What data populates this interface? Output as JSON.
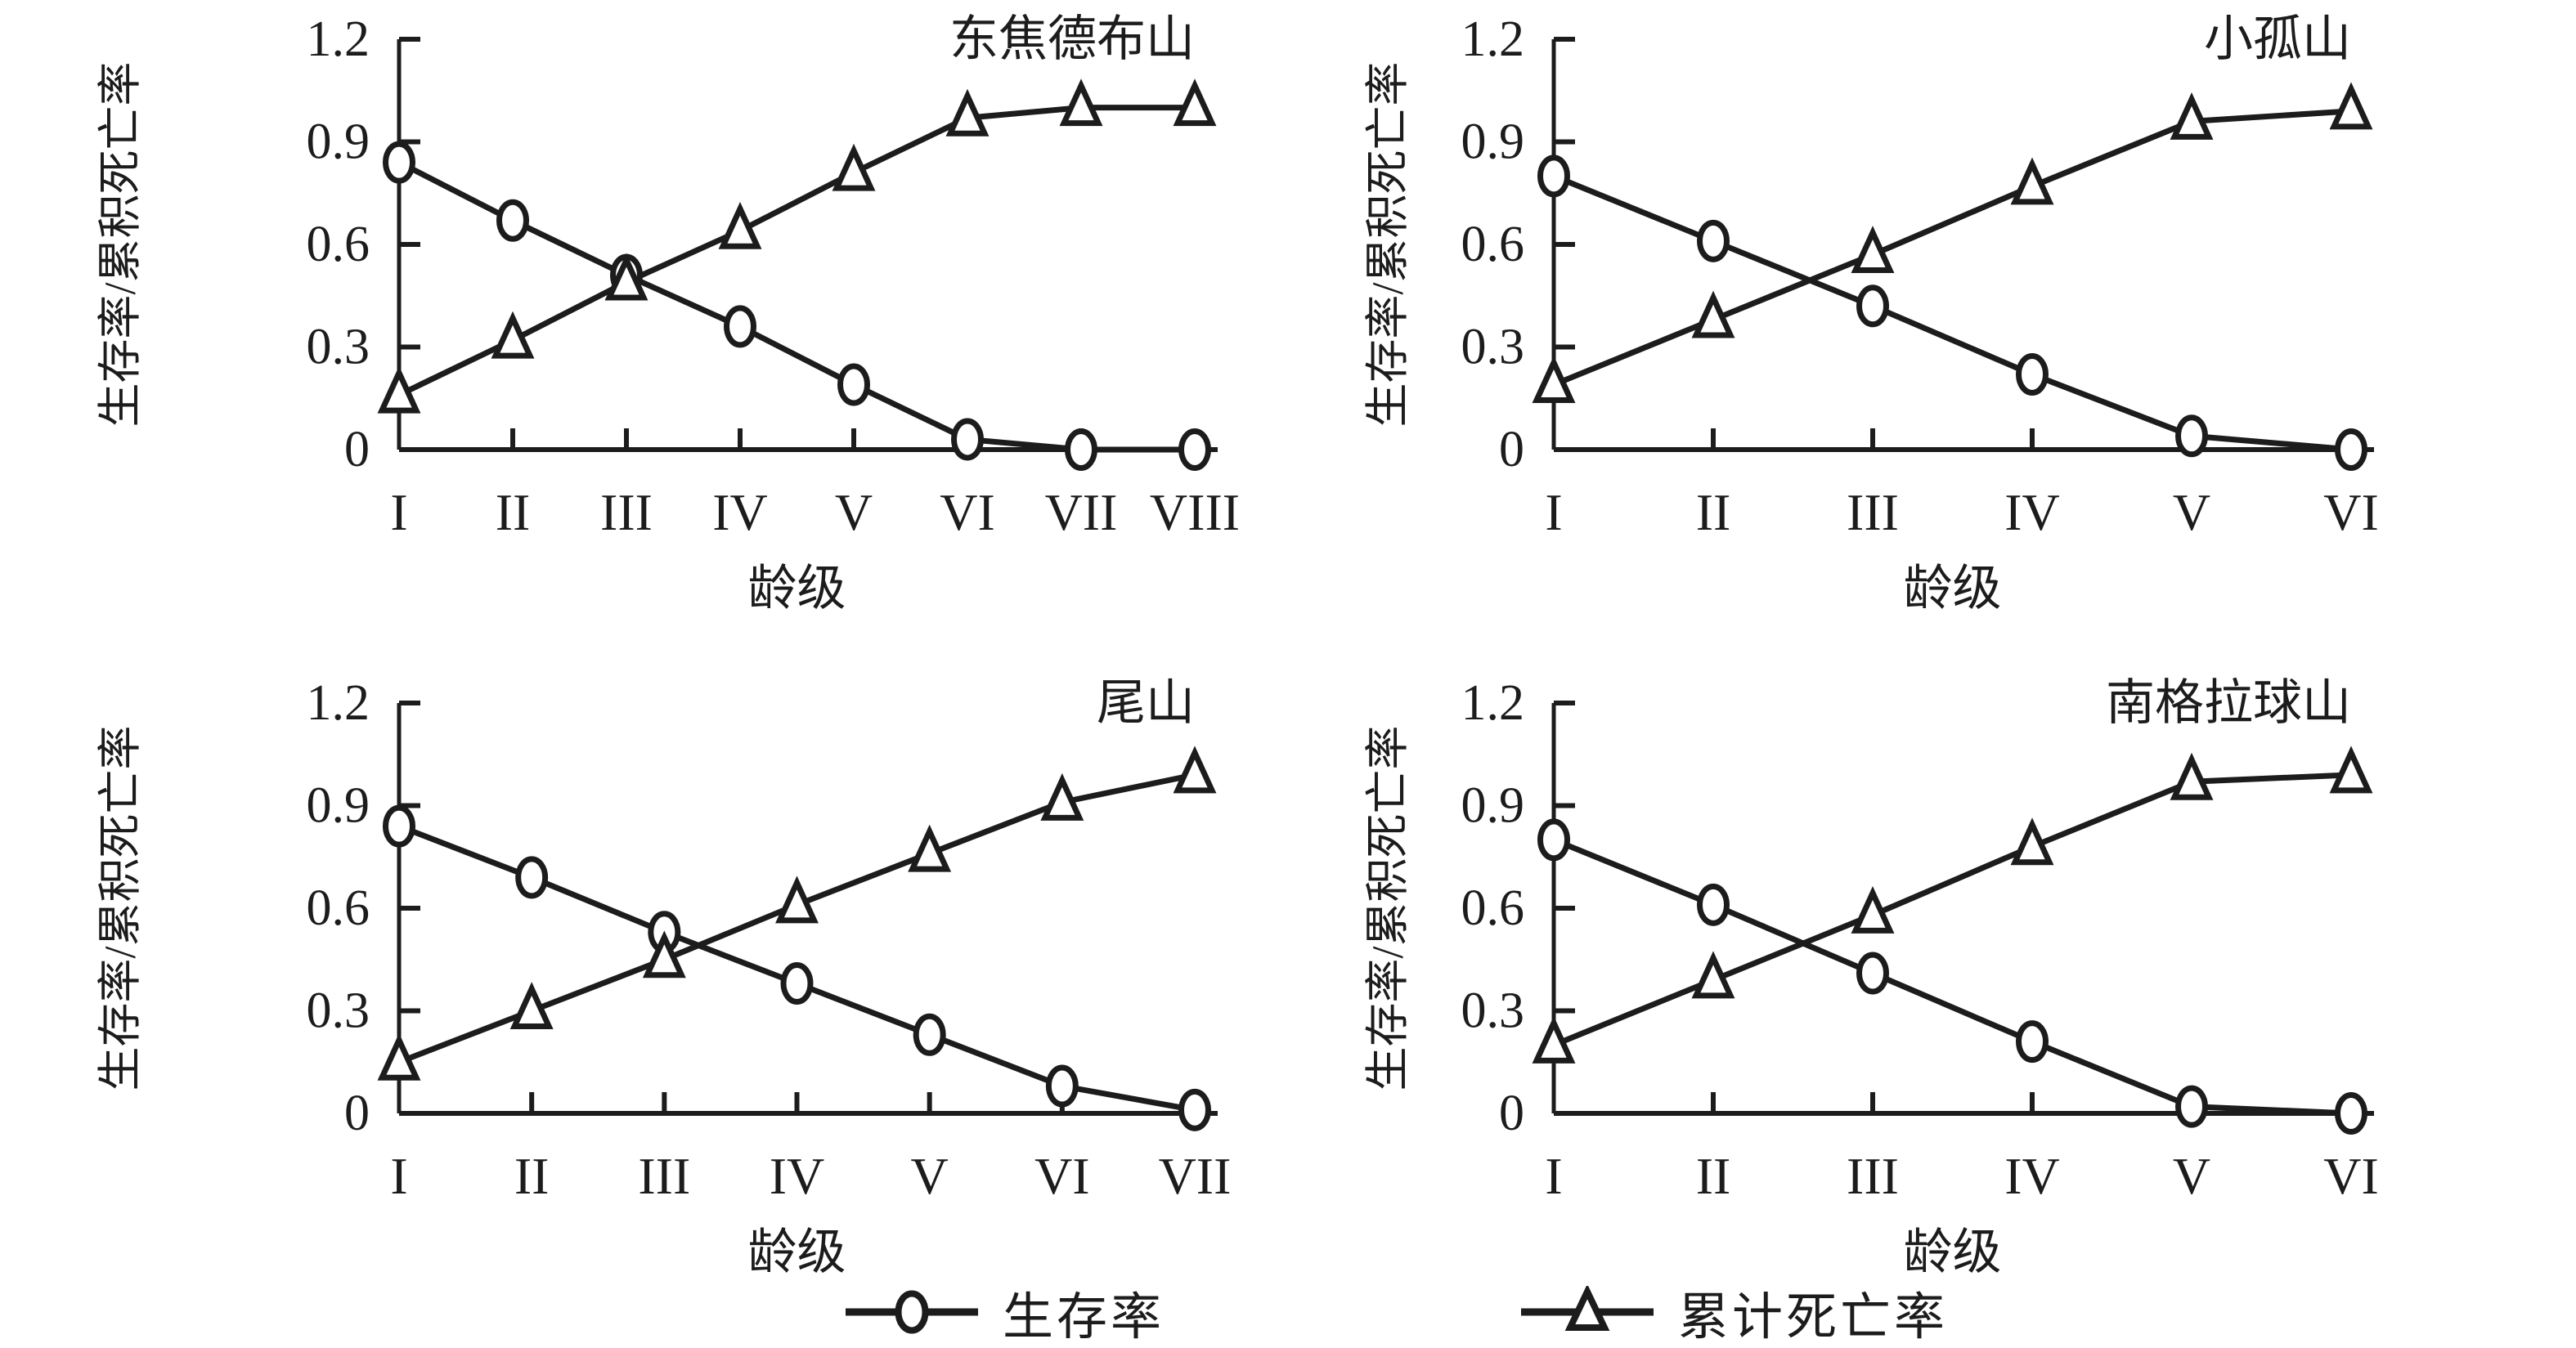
{
  "figure": {
    "ylabel": "生存率/累积死亡率",
    "xlabel": "龄级"
  },
  "legend": {
    "items": [
      {
        "label": "生存率",
        "marker": "circle"
      },
      {
        "label": "累计死亡率",
        "marker": "triangle"
      }
    ]
  },
  "chart_data": [
    {
      "type": "line",
      "title": "东焦德布山",
      "categories": [
        "I",
        "II",
        "III",
        "IV",
        "V",
        "VI",
        "VII",
        "VIII"
      ],
      "xlabel": "龄级",
      "ylabel": "生存率/累积死亡率",
      "ylim": [
        0,
        1.2
      ],
      "yticks": [
        0,
        0.3,
        0.6,
        0.9,
        1.2
      ],
      "grid": false,
      "legend_position": "bottom",
      "series": [
        {
          "name": "生存率",
          "marker": "circle",
          "values": [
            0.84,
            0.67,
            0.51,
            0.36,
            0.19,
            0.03,
            0,
            0
          ]
        },
        {
          "name": "累计死亡率",
          "marker": "triangle",
          "values": [
            0.16,
            0.32,
            0.49,
            0.64,
            0.81,
            0.97,
            1,
            1
          ]
        }
      ]
    },
    {
      "type": "line",
      "title": "小孤山",
      "categories": [
        "I",
        "II",
        "III",
        "IV",
        "V",
        "VI"
      ],
      "xlabel": "龄级",
      "ylabel": "生存率/累积死亡率",
      "ylim": [
        0,
        1.2
      ],
      "yticks": [
        0,
        0.3,
        0.6,
        0.9,
        1.2
      ],
      "grid": false,
      "legend_position": "bottom",
      "series": [
        {
          "name": "生存率",
          "marker": "circle",
          "values": [
            0.8,
            0.61,
            0.42,
            0.22,
            0.04,
            0
          ]
        },
        {
          "name": "累计死亡率",
          "marker": "triangle",
          "values": [
            0.19,
            0.38,
            0.57,
            0.77,
            0.96,
            0.99
          ]
        }
      ]
    },
    {
      "type": "line",
      "title": "尾山",
      "categories": [
        "I",
        "II",
        "III",
        "IV",
        "V",
        "VI",
        "VII"
      ],
      "xlabel": "龄级",
      "ylabel": "生存率/累积死亡率",
      "ylim": [
        0,
        1.2
      ],
      "yticks": [
        0,
        0.3,
        0.6,
        0.9,
        1.2
      ],
      "grid": false,
      "legend_position": "bottom",
      "series": [
        {
          "name": "生存率",
          "marker": "circle",
          "values": [
            0.84,
            0.69,
            0.53,
            0.38,
            0.23,
            0.08,
            0.01
          ]
        },
        {
          "name": "累计死亡率",
          "marker": "triangle",
          "values": [
            0.15,
            0.3,
            0.45,
            0.61,
            0.76,
            0.91,
            0.99
          ]
        }
      ]
    },
    {
      "type": "line",
      "title": "南格拉球山",
      "categories": [
        "I",
        "II",
        "III",
        "IV",
        "V",
        "VI"
      ],
      "xlabel": "龄级",
      "ylabel": "生存率/累积死亡率",
      "ylim": [
        0,
        1.2
      ],
      "yticks": [
        0,
        0.3,
        0.6,
        0.9,
        1.2
      ],
      "grid": false,
      "legend_position": "bottom",
      "series": [
        {
          "name": "生存率",
          "marker": "circle",
          "values": [
            0.8,
            0.61,
            0.41,
            0.21,
            0.02,
            0
          ]
        },
        {
          "name": "累计死亡率",
          "marker": "triangle",
          "values": [
            0.2,
            0.39,
            0.58,
            0.78,
            0.97,
            0.99
          ]
        }
      ]
    }
  ]
}
